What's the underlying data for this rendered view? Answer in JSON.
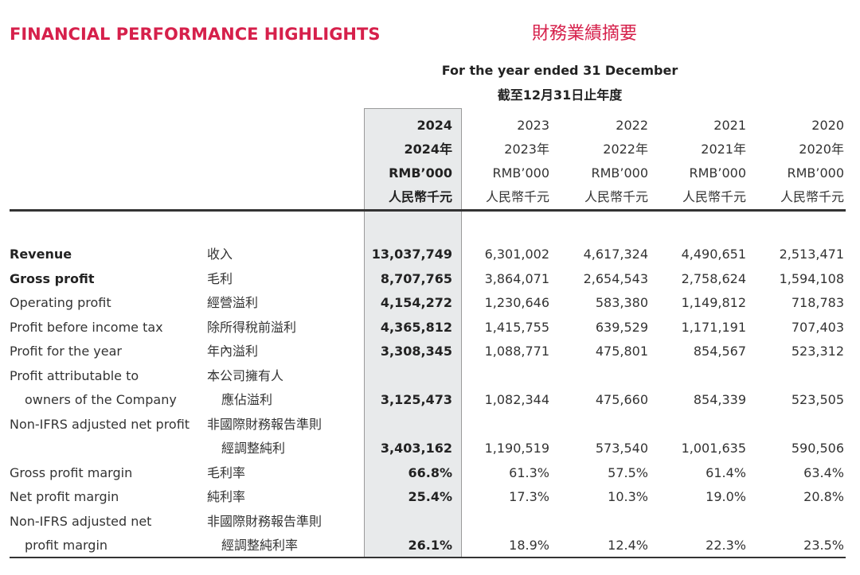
{
  "header": {
    "title": "FINANCIAL PERFORMANCE HIGHLIGHTS",
    "title_zh": "財務業績摘要",
    "period": "For the year ended 31 December",
    "period_zh": "截至12月31日止年度"
  },
  "table": {
    "columns": [
      {
        "year": "2024",
        "year_zh": "2024年",
        "unit": "RMB’000",
        "unit_zh": "人民幣千元"
      },
      {
        "year": "2023",
        "year_zh": "2023年",
        "unit": "RMB’000",
        "unit_zh": "人民幣千元"
      },
      {
        "year": "2022",
        "year_zh": "2022年",
        "unit": "RMB’000",
        "unit_zh": "人民幣千元"
      },
      {
        "year": "2021",
        "year_zh": "2021年",
        "unit": "RMB’000",
        "unit_zh": "人民幣千元"
      },
      {
        "year": "2020",
        "year_zh": "2020年",
        "unit": "RMB’000",
        "unit_zh": "人民幣千元"
      }
    ],
    "rows": [
      {
        "en": [
          "Revenue"
        ],
        "zh": [
          "收入"
        ],
        "values": [
          "13,037,749",
          "6,301,002",
          "4,617,324",
          "4,490,651",
          "2,513,471"
        ]
      },
      {
        "en": [
          "Gross profit"
        ],
        "zh": [
          "毛利"
        ],
        "values": [
          "8,707,765",
          "3,864,071",
          "2,654,543",
          "2,758,624",
          "1,594,108"
        ]
      },
      {
        "en": [
          "Operating profit"
        ],
        "zh": [
          "經營溢利"
        ],
        "values": [
          "4,154,272",
          "1,230,646",
          "583,380",
          "1,149,812",
          "718,783"
        ]
      },
      {
        "en": [
          "Profit before income tax"
        ],
        "zh": [
          "除所得稅前溢利"
        ],
        "values": [
          "4,365,812",
          "1,415,755",
          "639,529",
          "1,171,191",
          "707,403"
        ]
      },
      {
        "en": [
          "Profit for the year"
        ],
        "zh": [
          "年內溢利"
        ],
        "values": [
          "3,308,345",
          "1,088,771",
          "475,801",
          "854,567",
          "523,312"
        ]
      },
      {
        "en": [
          "Profit attributable to",
          "owners of the Company"
        ],
        "zh": [
          "本公司擁有人",
          "應佔溢利"
        ],
        "values": [
          "3,125,473",
          "1,082,344",
          "475,660",
          "854,339",
          "523,505"
        ]
      },
      {
        "en": [
          "Non-IFRS adjusted net profit"
        ],
        "zh": [
          "非國際財務報告準則",
          "經調整純利"
        ],
        "values": [
          "3,403,162",
          "1,190,519",
          "573,540",
          "1,001,635",
          "590,506"
        ]
      },
      {
        "en": [
          "Gross profit margin"
        ],
        "zh": [
          "毛利率"
        ],
        "values": [
          "66.8%",
          "61.3%",
          "57.5%",
          "61.4%",
          "63.4%"
        ]
      },
      {
        "en": [
          "Net profit margin"
        ],
        "zh": [
          "純利率"
        ],
        "values": [
          "25.4%",
          "17.3%",
          "10.3%",
          "19.0%",
          "20.8%"
        ]
      },
      {
        "en": [
          "Non-IFRS adjusted net",
          "profit margin"
        ],
        "zh": [
          "非國際財務報告準則",
          "經調整純利率"
        ],
        "values": [
          "26.1%",
          "18.9%",
          "12.4%",
          "22.3%",
          "23.5%"
        ]
      }
    ]
  }
}
